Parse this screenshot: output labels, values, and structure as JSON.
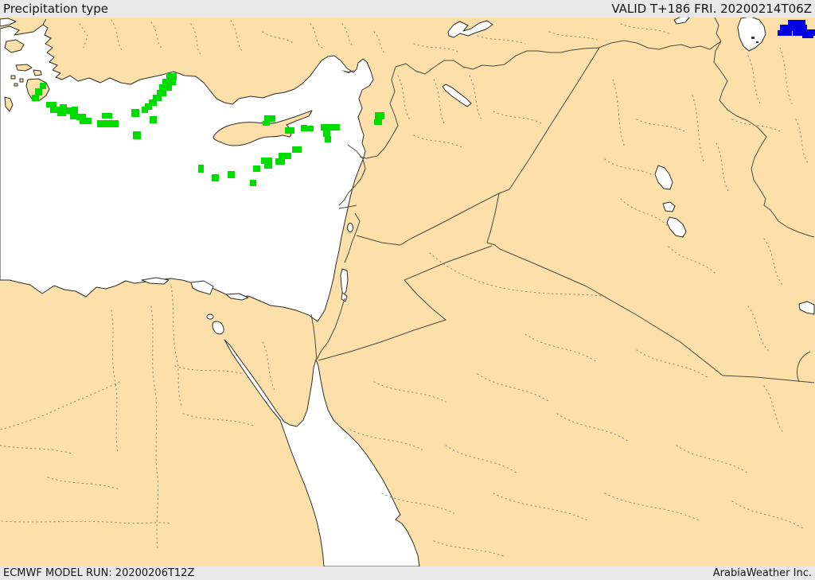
{
  "header": {
    "title": "Precipitation type",
    "valid_time": "VALID T+186 FRI. 20200214T06Z"
  },
  "footer": {
    "model_run": "ECMWF MODEL RUN: 20200206T12Z",
    "credit": "ArabiaWeather Inc."
  },
  "map": {
    "region": "Eastern Mediterranean and Middle East",
    "colors": {
      "land": "#fcdfa9",
      "sea": "#ffffff",
      "coastline": "#2d2d28",
      "country_border": "#4c4a3e",
      "admin_border": "#8d8569",
      "precip_green": "#00dc00",
      "precip_blue": "#0000e0",
      "bar_background": "#e9e9e9",
      "bar_text": "#141414"
    },
    "precipitation": {
      "green_cells": [
        [
          50,
          104,
          8,
          8
        ],
        [
          44,
          111,
          9,
          9
        ],
        [
          40,
          119,
          9,
          8
        ],
        [
          58,
          128,
          13,
          7
        ],
        [
          63,
          134,
          13,
          8
        ],
        [
          75,
          131,
          9,
          8
        ],
        [
          72,
          138,
          11,
          8
        ],
        [
          82,
          135,
          8,
          8
        ],
        [
          90,
          134,
          8,
          8
        ],
        [
          88,
          141,
          10,
          9
        ],
        [
          96,
          143,
          12,
          8
        ],
        [
          100,
          150,
          8,
          6
        ],
        [
          107,
          148,
          8,
          8
        ],
        [
          128,
          142,
          13,
          7
        ],
        [
          122,
          151,
          13,
          9
        ],
        [
          134,
          151,
          15,
          9
        ],
        [
          165,
          137,
          10,
          10
        ],
        [
          167,
          165,
          10,
          10
        ],
        [
          188,
          146,
          9,
          9
        ],
        [
          209,
          92,
          13,
          9
        ],
        [
          212,
          99,
          9,
          8
        ],
        [
          204,
          99,
          9,
          8
        ],
        [
          208,
          106,
          8,
          8
        ],
        [
          200,
          106,
          9,
          8
        ],
        [
          197,
          113,
          12,
          8
        ],
        [
          192,
          119,
          11,
          8
        ],
        [
          187,
          125,
          10,
          8
        ],
        [
          182,
          130,
          9,
          8
        ],
        [
          178,
          134,
          8,
          8
        ],
        [
          332,
          145,
          14,
          8
        ],
        [
          330,
          152,
          9,
          6
        ],
        [
          358,
          160,
          12,
          8
        ],
        [
          378,
          157,
          8,
          8
        ],
        [
          386,
          158,
          8,
          7
        ],
        [
          403,
          156,
          24,
          8
        ],
        [
          406,
          163,
          9,
          9
        ],
        [
          408,
          171,
          8,
          8
        ],
        [
          367,
          184,
          12,
          8
        ],
        [
          350,
          192,
          16,
          8
        ],
        [
          346,
          199,
          12,
          8
        ],
        [
          328,
          198,
          14,
          8
        ],
        [
          332,
          205,
          10,
          7
        ],
        [
          318,
          208,
          9,
          8
        ],
        [
          314,
          226,
          8,
          8
        ],
        [
          286,
          215,
          9,
          9
        ],
        [
          266,
          219,
          9,
          9
        ],
        [
          249,
          207,
          7,
          10
        ],
        [
          471,
          141,
          12,
          9
        ],
        [
          470,
          150,
          10,
          7
        ]
      ],
      "blue_cells": [
        [
          990,
          25,
          22,
          8
        ],
        [
          980,
          31,
          34,
          8
        ],
        [
          977,
          38,
          18,
          7
        ],
        [
          996,
          37,
          28,
          8
        ],
        [
          1008,
          44,
          14,
          4
        ]
      ]
    }
  }
}
